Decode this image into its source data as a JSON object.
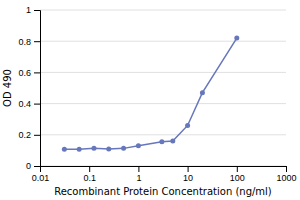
{
  "chart_data": {
    "type": "line",
    "x": [
      0.03125,
      0.0625,
      0.125,
      0.25,
      0.5,
      1,
      3,
      5,
      10,
      20,
      100
    ],
    "values": [
      0.108,
      0.108,
      0.113,
      0.109,
      0.113,
      0.13,
      0.155,
      0.16,
      0.26,
      0.47,
      0.82
    ],
    "xlabel": "Recombinant Protein Concentration (ng/ml)",
    "ylabel": "OD 490",
    "xlim": [
      0.01,
      1000
    ],
    "xticks": [
      0.01,
      0.1,
      1,
      10,
      100,
      1000
    ],
    "ylim": [
      0,
      1
    ],
    "yticks": [
      0,
      0.2,
      0.4,
      0.6,
      0.8,
      1
    ],
    "log": "x",
    "grid": true,
    "color": "#6677bb",
    "marker": "circle"
  }
}
